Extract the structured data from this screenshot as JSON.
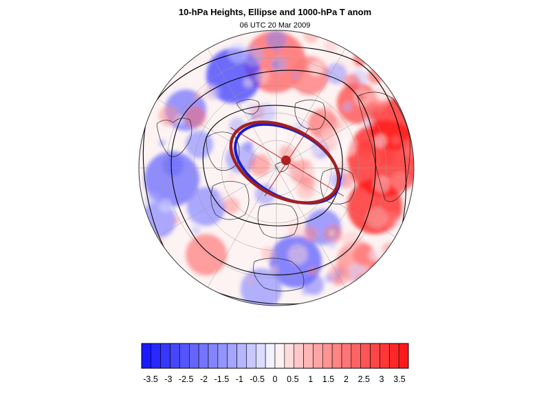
{
  "title": "10-hPa Heights, Ellipse and 1000-hPa T anom",
  "subtitle": "06 UTC 20 Mar 2009",
  "colorbar": {
    "labels": [
      "-3.5",
      "-3",
      "-2.5",
      "-2",
      "-1.5",
      "-1",
      "-0.5",
      "0",
      "0.5",
      "1",
      "1.5",
      "2",
      "2.5",
      "3",
      "3.5"
    ],
    "levels": [
      -3.5,
      -3,
      -2.5,
      -2,
      -1.5,
      -1,
      -0.5,
      0,
      0.5,
      1,
      1.5,
      2,
      2.5,
      3,
      3.5
    ],
    "negative_color": "#1a1aff",
    "positive_color": "#ff1a1a",
    "neutral_color": "#ffffff"
  },
  "map": {
    "projection": "orthographic, north polar view",
    "field": "1000-hPa temperature anomaly (shaded)",
    "contours": "10-hPa heights (black lines)",
    "ellipse_fit_color": "#a02020",
    "height_contour_color": "#1a1acc",
    "center_marker_color": "#b02020"
  }
}
